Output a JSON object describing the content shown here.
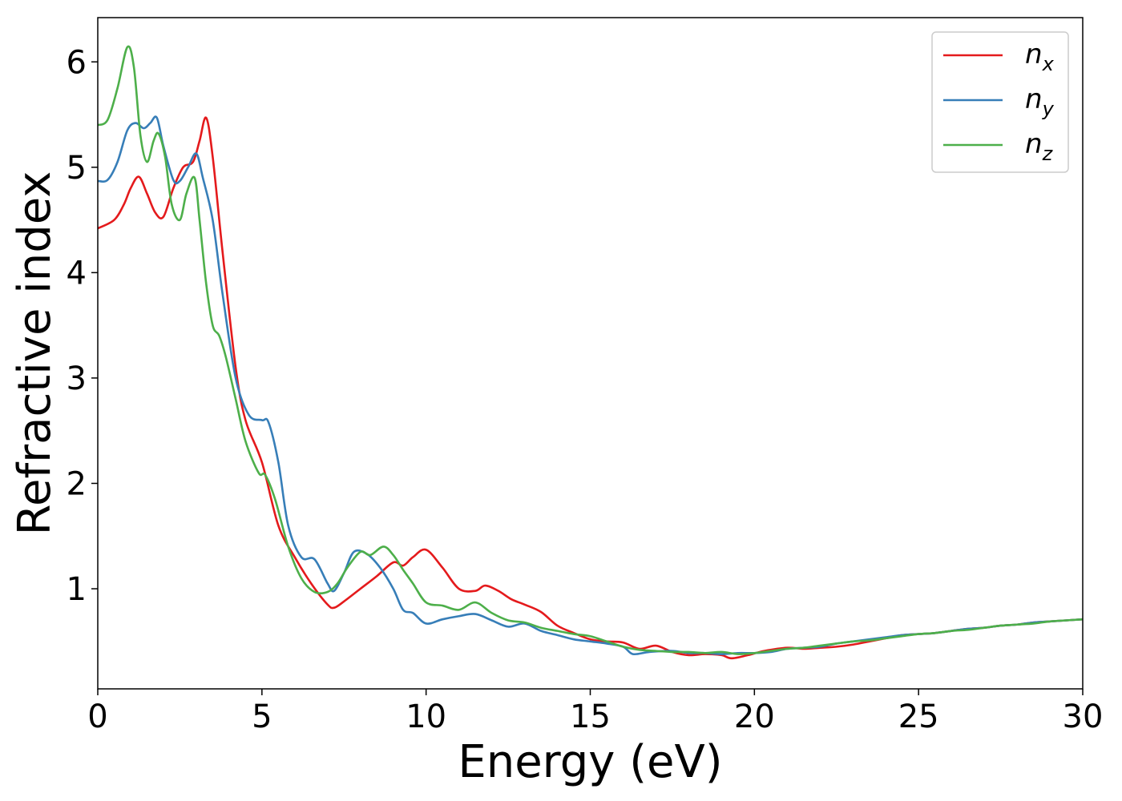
{
  "chart_data": {
    "type": "line",
    "title": "",
    "xlabel": "Energy (eV)",
    "ylabel": "Refractive index",
    "xlim": [
      0,
      30
    ],
    "ylim": [
      0.05,
      6.42
    ],
    "xticks": [
      0,
      5,
      10,
      15,
      20,
      25,
      30
    ],
    "yticks": [
      1,
      2,
      3,
      4,
      5,
      6
    ],
    "grid": false,
    "legend_position": "top-right",
    "series": [
      {
        "name": "n",
        "subscript": "x",
        "color": "#e41a1c",
        "x": [
          0,
          0.5,
          0.8,
          1.0,
          1.25,
          1.5,
          1.75,
          2.0,
          2.3,
          2.6,
          2.9,
          3.1,
          3.3,
          3.5,
          3.8,
          4.2,
          4.5,
          5.0,
          5.5,
          6.0,
          6.5,
          7.0,
          7.2,
          7.5,
          8.0,
          8.5,
          9.0,
          9.3,
          9.6,
          10.0,
          10.5,
          11.0,
          11.5,
          11.8,
          12.2,
          12.6,
          13.0,
          13.5,
          14.0,
          14.5,
          15.0,
          15.5,
          16.0,
          16.5,
          17.0,
          17.5,
          18.0,
          18.5,
          19.0,
          19.3,
          19.8,
          20.3,
          21.0,
          21.5,
          22.0,
          22.5,
          23.0,
          23.5,
          24.0,
          24.5,
          25.0,
          25.5,
          26.0,
          26.5,
          27.0,
          27.5,
          28.0,
          28.5,
          29.0,
          29.5,
          30.0
        ],
        "y": [
          4.42,
          4.5,
          4.65,
          4.8,
          4.91,
          4.75,
          4.57,
          4.53,
          4.8,
          5.0,
          5.05,
          5.25,
          5.47,
          5.1,
          4.2,
          3.1,
          2.6,
          2.2,
          1.6,
          1.3,
          1.05,
          0.85,
          0.82,
          0.88,
          1.0,
          1.12,
          1.25,
          1.22,
          1.3,
          1.37,
          1.2,
          1.0,
          0.98,
          1.03,
          0.98,
          0.9,
          0.85,
          0.78,
          0.65,
          0.58,
          0.52,
          0.5,
          0.49,
          0.43,
          0.46,
          0.4,
          0.37,
          0.38,
          0.37,
          0.34,
          0.37,
          0.41,
          0.44,
          0.43,
          0.44,
          0.45,
          0.47,
          0.5,
          0.53,
          0.56,
          0.57,
          0.58,
          0.6,
          0.62,
          0.63,
          0.65,
          0.66,
          0.68,
          0.69,
          0.7,
          0.71
        ]
      },
      {
        "name": "n",
        "subscript": "y",
        "color": "#377eb8",
        "x": [
          0,
          0.3,
          0.6,
          0.9,
          1.15,
          1.4,
          1.6,
          1.8,
          2.0,
          2.3,
          2.5,
          2.75,
          3.0,
          3.2,
          3.5,
          3.8,
          4.2,
          4.6,
          5.0,
          5.2,
          5.5,
          5.8,
          6.2,
          6.6,
          7.0,
          7.2,
          7.5,
          7.8,
          8.2,
          8.6,
          9.0,
          9.3,
          9.6,
          10.0,
          10.5,
          11.0,
          11.5,
          12.0,
          12.5,
          13.0,
          13.5,
          14.0,
          14.5,
          15.0,
          15.5,
          16.0,
          16.3,
          16.8,
          17.5,
          18.0,
          18.5,
          19.0,
          19.5,
          20.0,
          20.5,
          21.0,
          21.5,
          22.0,
          22.5,
          23.0,
          23.5,
          24.0,
          24.5,
          25.0,
          25.5,
          26.0,
          26.5,
          27.0,
          27.5,
          28.0,
          28.5,
          29.0,
          29.5,
          30.0
        ],
        "y": [
          4.87,
          4.88,
          5.05,
          5.35,
          5.42,
          5.37,
          5.42,
          5.47,
          5.2,
          4.88,
          4.87,
          5.0,
          5.13,
          4.9,
          4.5,
          3.8,
          3.0,
          2.65,
          2.6,
          2.58,
          2.2,
          1.6,
          1.3,
          1.28,
          1.05,
          0.98,
          1.15,
          1.35,
          1.33,
          1.2,
          1.0,
          0.8,
          0.77,
          0.67,
          0.71,
          0.74,
          0.76,
          0.7,
          0.64,
          0.67,
          0.6,
          0.56,
          0.52,
          0.5,
          0.48,
          0.45,
          0.38,
          0.4,
          0.41,
          0.39,
          0.39,
          0.38,
          0.39,
          0.39,
          0.4,
          0.43,
          0.44,
          0.45,
          0.48,
          0.5,
          0.52,
          0.54,
          0.56,
          0.57,
          0.58,
          0.6,
          0.62,
          0.63,
          0.65,
          0.66,
          0.68,
          0.69,
          0.7,
          0.71
        ]
      },
      {
        "name": "n",
        "subscript": "z",
        "color": "#4daf4a",
        "x": [
          0,
          0.3,
          0.6,
          0.9,
          1.1,
          1.3,
          1.5,
          1.7,
          1.85,
          2.05,
          2.25,
          2.5,
          2.7,
          2.95,
          3.1,
          3.3,
          3.5,
          3.7,
          3.9,
          4.2,
          4.5,
          4.9,
          5.1,
          5.4,
          5.8,
          6.2,
          6.6,
          7.0,
          7.3,
          7.6,
          8.0,
          8.3,
          8.7,
          9.0,
          9.3,
          9.6,
          10.0,
          10.5,
          11.0,
          11.5,
          12.0,
          12.5,
          13.0,
          13.5,
          14.0,
          14.5,
          15.0,
          15.5,
          16.0,
          16.5,
          17.0,
          17.5,
          18.0,
          18.5,
          19.0,
          19.5,
          20.0,
          20.5,
          21.0,
          21.5,
          22.0,
          22.5,
          23.0,
          23.5,
          24.0,
          24.5,
          25.0,
          25.5,
          26.0,
          26.5,
          27.0,
          27.5,
          28.0,
          28.5,
          29.0,
          29.5,
          30.0
        ],
        "y": [
          5.4,
          5.45,
          5.75,
          6.14,
          5.95,
          5.3,
          5.05,
          5.25,
          5.32,
          5.1,
          4.65,
          4.5,
          4.75,
          4.9,
          4.5,
          3.9,
          3.5,
          3.4,
          3.2,
          2.8,
          2.4,
          2.1,
          2.08,
          1.85,
          1.4,
          1.1,
          0.97,
          0.97,
          1.05,
          1.2,
          1.35,
          1.32,
          1.4,
          1.32,
          1.18,
          1.05,
          0.87,
          0.84,
          0.8,
          0.87,
          0.77,
          0.7,
          0.68,
          0.63,
          0.6,
          0.57,
          0.55,
          0.5,
          0.45,
          0.42,
          0.41,
          0.4,
          0.4,
          0.39,
          0.4,
          0.38,
          0.39,
          0.41,
          0.43,
          0.44,
          0.46,
          0.48,
          0.5,
          0.51,
          0.53,
          0.55,
          0.57,
          0.58,
          0.6,
          0.61,
          0.63,
          0.65,
          0.66,
          0.67,
          0.69,
          0.7,
          0.71
        ]
      }
    ]
  }
}
